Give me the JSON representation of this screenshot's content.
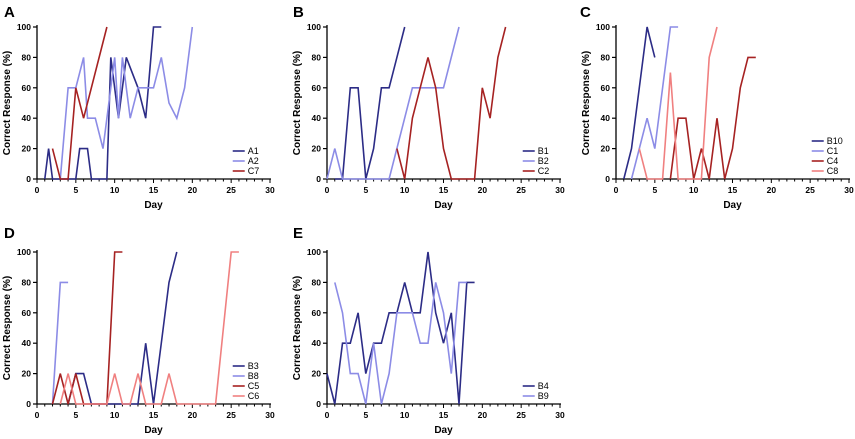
{
  "chart_data": [
    {
      "type": "line",
      "panel": "A",
      "xlabel": "Day",
      "ylabel": "Correct Response (%)",
      "xlim": [
        0,
        30
      ],
      "ylim": [
        0,
        100
      ],
      "xticks": [
        0,
        5,
        10,
        15,
        20,
        25,
        30
      ],
      "yticks": [
        0,
        20,
        40,
        60,
        80,
        100
      ],
      "legend_position": "bottom-right",
      "series": [
        {
          "name": "A1",
          "color": "#2c2c86",
          "points": [
            [
              1,
              0
            ],
            [
              1.5,
              20
            ],
            [
              2,
              0
            ],
            [
              5,
              0
            ],
            [
              5.5,
              20
            ],
            [
              6.5,
              20
            ],
            [
              7,
              0
            ],
            [
              9,
              0
            ],
            [
              9.5,
              80
            ],
            [
              10.5,
              40
            ],
            [
              11.5,
              80
            ],
            [
              13,
              60
            ],
            [
              14,
              40
            ],
            [
              15,
              100
            ],
            [
              16,
              100
            ]
          ]
        },
        {
          "name": "A2",
          "color": "#8c8ce6",
          "points": [
            [
              3,
              0
            ],
            [
              4,
              60
            ],
            [
              5,
              60
            ],
            [
              6,
              80
            ],
            [
              6.5,
              40
            ],
            [
              7.5,
              40
            ],
            [
              8.5,
              20
            ],
            [
              9,
              40
            ],
            [
              10,
              80
            ],
            [
              10.5,
              40
            ],
            [
              11,
              80
            ],
            [
              12,
              40
            ],
            [
              13,
              60
            ],
            [
              14,
              60
            ],
            [
              15,
              60
            ],
            [
              16,
              80
            ],
            [
              17,
              50
            ],
            [
              18,
              40
            ],
            [
              19,
              60
            ],
            [
              20,
              100
            ]
          ]
        },
        {
          "name": "C7",
          "color": "#a62222",
          "points": [
            [
              2,
              20
            ],
            [
              3,
              0
            ],
            [
              4,
              0
            ],
            [
              5,
              60
            ],
            [
              6,
              40
            ],
            [
              9,
              100
            ]
          ]
        }
      ]
    },
    {
      "type": "line",
      "panel": "B",
      "xlabel": "Day",
      "ylabel": "Correct Response (%)",
      "xlim": [
        0,
        30
      ],
      "ylim": [
        0,
        100
      ],
      "xticks": [
        0,
        5,
        10,
        15,
        20,
        25,
        30
      ],
      "yticks": [
        0,
        20,
        40,
        60,
        80,
        100
      ],
      "legend_position": "bottom-right",
      "series": [
        {
          "name": "B1",
          "color": "#2c2c86",
          "points": [
            [
              1,
              0
            ],
            [
              2,
              0
            ],
            [
              3,
              60
            ],
            [
              4,
              60
            ],
            [
              5,
              0
            ],
            [
              6,
              20
            ],
            [
              7,
              60
            ],
            [
              8,
              60
            ],
            [
              9,
              80
            ],
            [
              10,
              100
            ]
          ]
        },
        {
          "name": "B2",
          "color": "#8c8ce6",
          "points": [
            [
              0,
              0
            ],
            [
              1,
              20
            ],
            [
              2,
              0
            ],
            [
              8,
              0
            ],
            [
              11,
              60
            ],
            [
              15,
              60
            ],
            [
              17,
              100
            ]
          ]
        },
        {
          "name": "C2",
          "color": "#a62222",
          "points": [
            [
              9,
              20
            ],
            [
              10,
              0
            ],
            [
              11,
              40
            ],
            [
              13,
              80
            ],
            [
              14,
              60
            ],
            [
              15,
              20
            ],
            [
              16,
              0
            ],
            [
              19,
              0
            ],
            [
              20,
              60
            ],
            [
              21,
              40
            ],
            [
              22,
              80
            ],
            [
              23,
              100
            ]
          ]
        }
      ]
    },
    {
      "type": "line",
      "panel": "C",
      "xlabel": "Day",
      "ylabel": "Correct Response (%)",
      "xlim": [
        0,
        30
      ],
      "ylim": [
        0,
        100
      ],
      "xticks": [
        0,
        5,
        10,
        15,
        20,
        25,
        30
      ],
      "yticks": [
        0,
        20,
        40,
        60,
        80,
        100
      ],
      "legend_position": "bottom-right",
      "series": [
        {
          "name": "B10",
          "color": "#2c2c86",
          "points": [
            [
              1,
              0
            ],
            [
              2,
              20
            ],
            [
              3,
              60
            ],
            [
              4,
              100
            ],
            [
              5,
              80
            ]
          ]
        },
        {
          "name": "C1",
          "color": "#8c8ce6",
          "points": [
            [
              2,
              0
            ],
            [
              4,
              40
            ],
            [
              5,
              20
            ],
            [
              6,
              60
            ],
            [
              7,
              100
            ],
            [
              8,
              100
            ]
          ]
        },
        {
          "name": "C4",
          "color": "#a62222",
          "points": [
            [
              7,
              0
            ],
            [
              8,
              40
            ],
            [
              9,
              40
            ],
            [
              10,
              0
            ],
            [
              11,
              20
            ],
            [
              12,
              0
            ],
            [
              13,
              40
            ],
            [
              14,
              0
            ],
            [
              15,
              20
            ],
            [
              16,
              60
            ],
            [
              17,
              80
            ],
            [
              18,
              80
            ]
          ]
        },
        {
          "name": "C8",
          "color": "#f08080",
          "points": [
            [
              3,
              20
            ],
            [
              4,
              0
            ],
            [
              6,
              0
            ],
            [
              7,
              70
            ],
            [
              8,
              0
            ],
            [
              11,
              0
            ],
            [
              12,
              80
            ],
            [
              13,
              100
            ]
          ]
        }
      ]
    },
    {
      "type": "line",
      "panel": "D",
      "xlabel": "Day",
      "ylabel": "Correct Response (%)",
      "xlim": [
        0,
        30
      ],
      "ylim": [
        0,
        100
      ],
      "xticks": [
        0,
        5,
        10,
        15,
        20,
        25,
        30
      ],
      "yticks": [
        0,
        20,
        40,
        60,
        80,
        100
      ],
      "legend_position": "bottom-right",
      "series": [
        {
          "name": "B3",
          "color": "#2c2c86",
          "points": [
            [
              4,
              0
            ],
            [
              5,
              20
            ],
            [
              6,
              20
            ],
            [
              7,
              0
            ],
            [
              13,
              0
            ],
            [
              14,
              40
            ],
            [
              15,
              0
            ],
            [
              16,
              40
            ],
            [
              17,
              80
            ],
            [
              18,
              100
            ]
          ]
        },
        {
          "name": "B8",
          "color": "#8c8ce6",
          "points": [
            [
              2,
              0
            ],
            [
              3,
              80
            ],
            [
              4,
              80
            ]
          ]
        },
        {
          "name": "C5",
          "color": "#a62222",
          "points": [
            [
              2,
              0
            ],
            [
              3,
              20
            ],
            [
              4,
              0
            ],
            [
              5,
              20
            ],
            [
              6,
              0
            ],
            [
              9,
              0
            ],
            [
              10,
              100
            ],
            [
              11,
              100
            ]
          ]
        },
        {
          "name": "C6",
          "color": "#f08080",
          "points": [
            [
              3,
              0
            ],
            [
              4,
              20
            ],
            [
              5,
              0
            ],
            [
              9,
              0
            ],
            [
              10,
              20
            ],
            [
              11,
              0
            ],
            [
              12,
              0
            ],
            [
              13,
              20
            ],
            [
              14,
              0
            ],
            [
              16,
              0
            ],
            [
              17,
              20
            ],
            [
              18,
              0
            ],
            [
              23,
              0
            ],
            [
              25,
              100
            ],
            [
              26,
              100
            ]
          ]
        }
      ]
    },
    {
      "type": "line",
      "panel": "E",
      "xlabel": "Day",
      "ylabel": "Correct Response (%)",
      "xlim": [
        0,
        30
      ],
      "ylim": [
        0,
        100
      ],
      "xticks": [
        0,
        5,
        10,
        15,
        20,
        25,
        30
      ],
      "yticks": [
        0,
        20,
        40,
        60,
        80,
        100
      ],
      "legend_position": "bottom-right",
      "series": [
        {
          "name": "B4",
          "color": "#2c2c86",
          "points": [
            [
              0,
              20
            ],
            [
              1,
              0
            ],
            [
              2,
              40
            ],
            [
              3,
              40
            ],
            [
              4,
              60
            ],
            [
              5,
              20
            ],
            [
              6,
              40
            ],
            [
              7,
              40
            ],
            [
              8,
              60
            ],
            [
              9,
              60
            ],
            [
              10,
              80
            ],
            [
              11,
              60
            ],
            [
              12,
              60
            ],
            [
              13,
              100
            ],
            [
              14,
              60
            ],
            [
              15,
              40
            ],
            [
              16,
              60
            ],
            [
              17,
              0
            ],
            [
              18,
              80
            ],
            [
              19,
              80
            ]
          ]
        },
        {
          "name": "B9",
          "color": "#8c8ce6",
          "points": [
            [
              1,
              80
            ],
            [
              2,
              60
            ],
            [
              3,
              20
            ],
            [
              4,
              20
            ],
            [
              5,
              0
            ],
            [
              6,
              40
            ],
            [
              7,
              0
            ],
            [
              8,
              20
            ],
            [
              9,
              60
            ],
            [
              10,
              60
            ],
            [
              11,
              60
            ],
            [
              12,
              40
            ],
            [
              13,
              40
            ],
            [
              14,
              80
            ],
            [
              15,
              60
            ],
            [
              16,
              20
            ],
            [
              17,
              80
            ],
            [
              18,
              80
            ]
          ]
        }
      ]
    }
  ]
}
